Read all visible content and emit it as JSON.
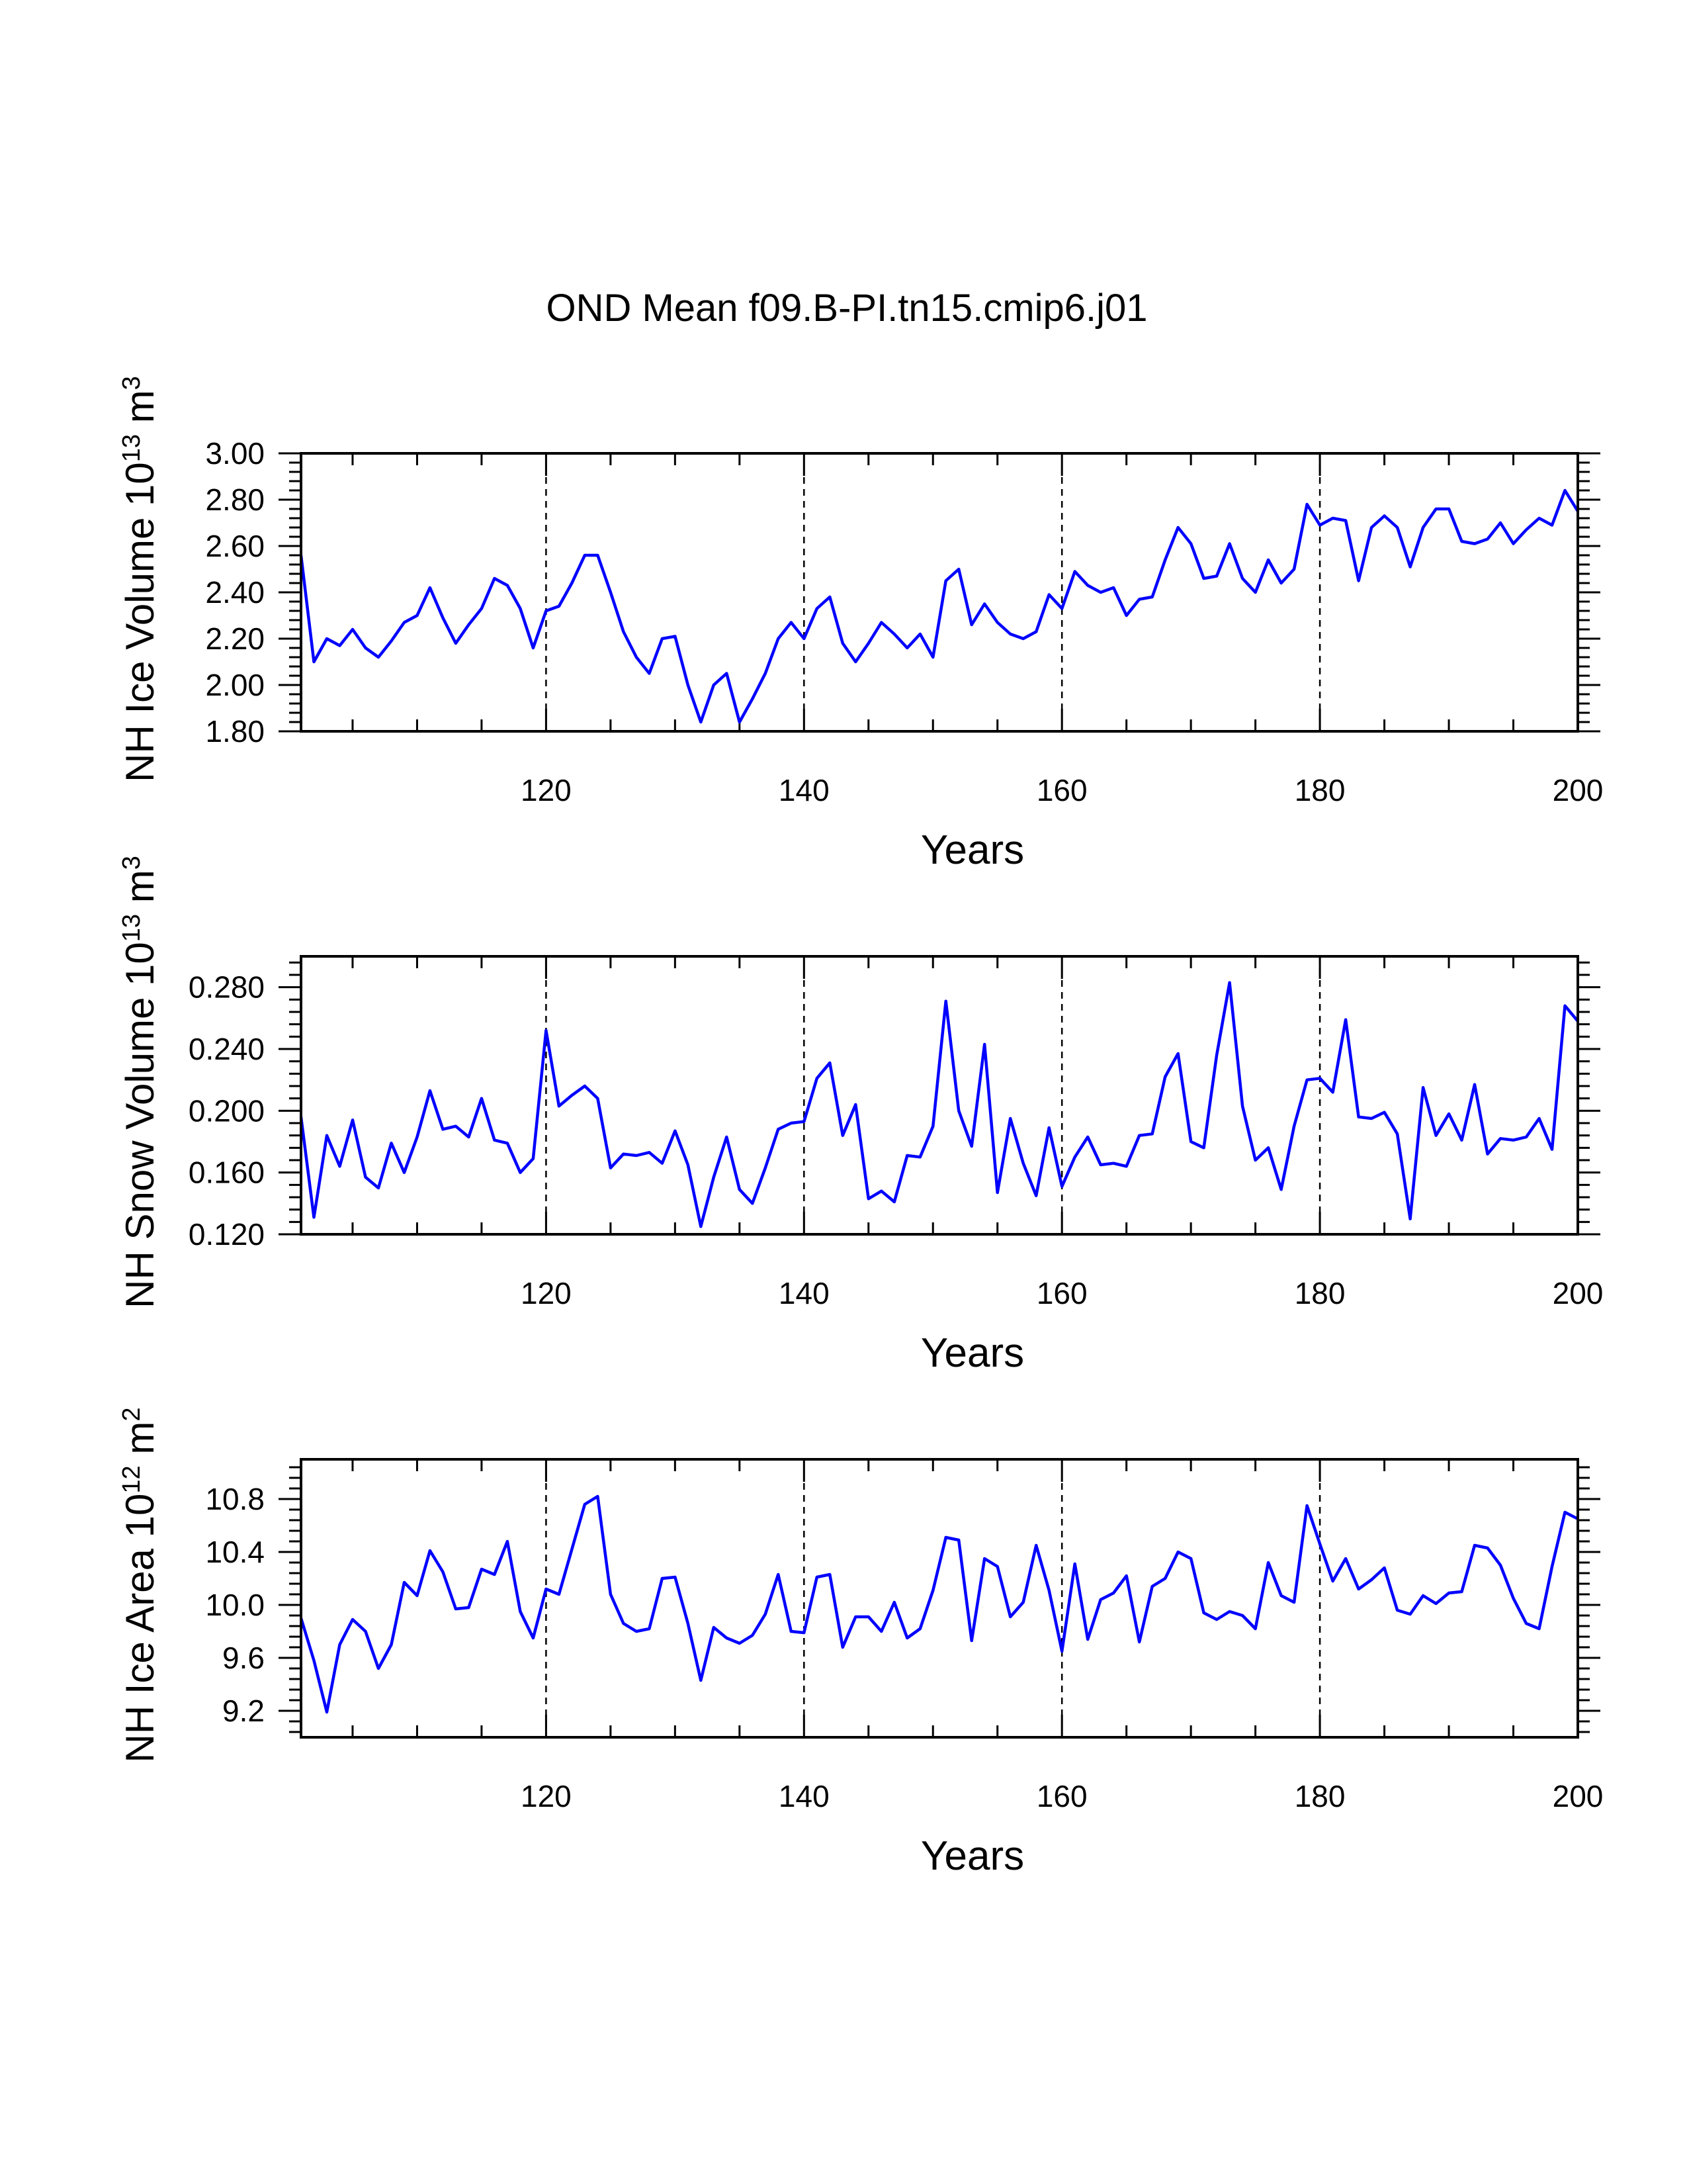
{
  "title": "OND Mean f09.B-PI.tn15.cmip6.j01",
  "colors": {
    "line": "#0000ff",
    "axis": "#000000",
    "grid": "#000000"
  },
  "chart_data": [
    {
      "type": "line",
      "ylabel": {
        "prefix": "NH Ice Volume 10",
        "exp": "13",
        "unit": " m",
        "unitexp": "3"
      },
      "xlabel": "Years",
      "xlim": [
        101,
        200
      ],
      "ylim": [
        1.8,
        3.0
      ],
      "yticks": [
        "1.80",
        "2.00",
        "2.20",
        "2.40",
        "2.60",
        "2.80",
        "3.00"
      ],
      "xticks": [
        "120",
        "140",
        "160",
        "180",
        "200"
      ],
      "grid_x": [
        120,
        140,
        160,
        180
      ],
      "x": [
        101,
        102,
        103,
        104,
        105,
        106,
        107,
        108,
        109,
        110,
        111,
        112,
        113,
        114,
        115,
        116,
        117,
        118,
        119,
        120,
        121,
        122,
        123,
        124,
        125,
        126,
        127,
        128,
        129,
        130,
        131,
        132,
        133,
        134,
        135,
        136,
        137,
        138,
        139,
        140,
        141,
        142,
        143,
        144,
        145,
        146,
        147,
        148,
        149,
        150,
        151,
        152,
        153,
        154,
        155,
        156,
        157,
        158,
        159,
        160,
        161,
        162,
        163,
        164,
        165,
        166,
        167,
        168,
        169,
        170,
        171,
        172,
        173,
        174,
        175,
        176,
        177,
        178,
        179,
        180,
        181,
        182,
        183,
        184,
        185,
        186,
        187,
        188,
        189,
        190,
        191,
        192,
        193,
        194,
        195,
        196,
        197,
        198,
        199,
        200
      ],
      "values": [
        2.56,
        2.1,
        2.2,
        2.17,
        2.24,
        2.16,
        2.12,
        2.19,
        2.27,
        2.3,
        2.42,
        2.29,
        2.18,
        2.26,
        2.33,
        2.46,
        2.43,
        2.33,
        2.16,
        2.32,
        2.34,
        2.44,
        2.56,
        2.56,
        2.4,
        2.23,
        2.12,
        2.05,
        2.2,
        2.21,
        2.0,
        1.84,
        2.0,
        2.05,
        1.84,
        1.94,
        2.05,
        2.2,
        2.27,
        2.2,
        2.33,
        2.38,
        2.18,
        2.1,
        2.18,
        2.27,
        2.22,
        2.16,
        2.22,
        2.12,
        2.45,
        2.5,
        2.26,
        2.35,
        2.27,
        2.22,
        2.2,
        2.23,
        2.39,
        2.33,
        2.49,
        2.43,
        2.4,
        2.42,
        2.3,
        2.37,
        2.38,
        2.54,
        2.68,
        2.61,
        2.46,
        2.47,
        2.61,
        2.46,
        2.4,
        2.54,
        2.44,
        2.5,
        2.78,
        2.69,
        2.72,
        2.71,
        2.45,
        2.68,
        2.73,
        2.68,
        2.51,
        2.68,
        2.76,
        2.76,
        2.62,
        2.61,
        2.63,
        2.7,
        2.61,
        2.67,
        2.72,
        2.69,
        2.84,
        2.75
      ]
    },
    {
      "type": "line",
      "ylabel": {
        "prefix": "NH Snow Volume 10",
        "exp": "13",
        "unit": " m",
        "unitexp": "3"
      },
      "xlabel": "Years",
      "xlim": [
        101,
        200
      ],
      "ylim": [
        0.12,
        0.3
      ],
      "yticks": [
        "0.120",
        "0.160",
        "0.200",
        "0.240",
        "0.280"
      ],
      "xticks": [
        "120",
        "140",
        "160",
        "180",
        "200"
      ],
      "grid_x": [
        120,
        140,
        160,
        180
      ],
      "x": [
        101,
        102,
        103,
        104,
        105,
        106,
        107,
        108,
        109,
        110,
        111,
        112,
        113,
        114,
        115,
        116,
        117,
        118,
        119,
        120,
        121,
        122,
        123,
        124,
        125,
        126,
        127,
        128,
        129,
        130,
        131,
        132,
        133,
        134,
        135,
        136,
        137,
        138,
        139,
        140,
        141,
        142,
        143,
        144,
        145,
        146,
        147,
        148,
        149,
        150,
        151,
        152,
        153,
        154,
        155,
        156,
        157,
        158,
        159,
        160,
        161,
        162,
        163,
        164,
        165,
        166,
        167,
        168,
        169,
        170,
        171,
        172,
        173,
        174,
        175,
        176,
        177,
        178,
        179,
        180,
        181,
        182,
        183,
        184,
        185,
        186,
        187,
        188,
        189,
        190,
        191,
        192,
        193,
        194,
        195,
        196,
        197,
        198,
        199,
        200
      ],
      "values": [
        0.196,
        0.131,
        0.184,
        0.164,
        0.194,
        0.157,
        0.15,
        0.179,
        0.16,
        0.183,
        0.213,
        0.188,
        0.19,
        0.183,
        0.208,
        0.181,
        0.179,
        0.16,
        0.169,
        0.252,
        0.203,
        0.21,
        0.216,
        0.208,
        0.163,
        0.172,
        0.171,
        0.173,
        0.166,
        0.187,
        0.165,
        0.125,
        0.157,
        0.183,
        0.149,
        0.14,
        0.163,
        0.188,
        0.192,
        0.193,
        0.221,
        0.231,
        0.184,
        0.204,
        0.143,
        0.148,
        0.141,
        0.171,
        0.17,
        0.19,
        0.271,
        0.2,
        0.177,
        0.243,
        0.147,
        0.195,
        0.166,
        0.145,
        0.189,
        0.151,
        0.17,
        0.183,
        0.165,
        0.166,
        0.164,
        0.184,
        0.185,
        0.222,
        0.237,
        0.18,
        0.176,
        0.236,
        0.283,
        0.203,
        0.168,
        0.176,
        0.149,
        0.19,
        0.22,
        0.221,
        0.212,
        0.259,
        0.196,
        0.195,
        0.199,
        0.185,
        0.13,
        0.215,
        0.184,
        0.198,
        0.181,
        0.217,
        0.172,
        0.182,
        0.181,
        0.183,
        0.195,
        0.175,
        0.268,
        0.258
      ]
    },
    {
      "type": "line",
      "ylabel": {
        "prefix": "NH Ice Area 10",
        "exp": "12",
        "unit": " m",
        "unitexp": "2"
      },
      "xlabel": "Years",
      "xlim": [
        101,
        200
      ],
      "ylim": [
        9.0,
        11.1
      ],
      "yticks": [
        "9.2",
        "9.6",
        "10.0",
        "10.4",
        "10.8"
      ],
      "xticks": [
        "120",
        "140",
        "160",
        "180",
        "200"
      ],
      "grid_x": [
        120,
        140,
        160,
        180
      ],
      "x": [
        101,
        102,
        103,
        104,
        105,
        106,
        107,
        108,
        109,
        110,
        111,
        112,
        113,
        114,
        115,
        116,
        117,
        118,
        119,
        120,
        121,
        122,
        123,
        124,
        125,
        126,
        127,
        128,
        129,
        130,
        131,
        132,
        133,
        134,
        135,
        136,
        137,
        138,
        139,
        140,
        141,
        142,
        143,
        144,
        145,
        146,
        147,
        148,
        149,
        150,
        151,
        152,
        153,
        154,
        155,
        156,
        157,
        158,
        159,
        160,
        161,
        162,
        163,
        164,
        165,
        166,
        167,
        168,
        169,
        170,
        171,
        172,
        173,
        174,
        175,
        176,
        177,
        178,
        179,
        180,
        181,
        182,
        183,
        184,
        185,
        186,
        187,
        188,
        189,
        190,
        191,
        192,
        193,
        194,
        195,
        196,
        197,
        198,
        199,
        200
      ],
      "values": [
        9.9,
        9.58,
        9.19,
        9.7,
        9.89,
        9.8,
        9.52,
        9.7,
        10.17,
        10.07,
        10.41,
        10.25,
        9.97,
        9.98,
        10.27,
        10.23,
        10.48,
        9.95,
        9.75,
        10.12,
        10.08,
        10.42,
        10.76,
        10.82,
        10.08,
        9.86,
        9.8,
        9.82,
        10.2,
        10.21,
        9.86,
        9.43,
        9.83,
        9.75,
        9.71,
        9.77,
        9.93,
        10.23,
        9.8,
        9.79,
        10.21,
        10.23,
        9.68,
        9.91,
        9.91,
        9.8,
        10.02,
        9.75,
        9.82,
        10.11,
        10.51,
        10.49,
        9.73,
        10.35,
        10.29,
        9.91,
        10.02,
        10.45,
        10.11,
        9.65,
        10.31,
        9.74,
        10.04,
        10.09,
        10.22,
        9.72,
        10.14,
        10.2,
        10.4,
        10.35,
        9.94,
        9.89,
        9.95,
        9.92,
        9.82,
        10.32,
        10.07,
        10.02,
        10.75,
        10.46,
        10.18,
        10.35,
        10.12,
        10.19,
        10.28,
        9.96,
        9.93,
        10.07,
        10.01,
        10.09,
        10.1,
        10.45,
        10.43,
        10.3,
        10.05,
        9.86,
        9.82,
        10.29,
        10.7,
        10.65
      ]
    }
  ]
}
